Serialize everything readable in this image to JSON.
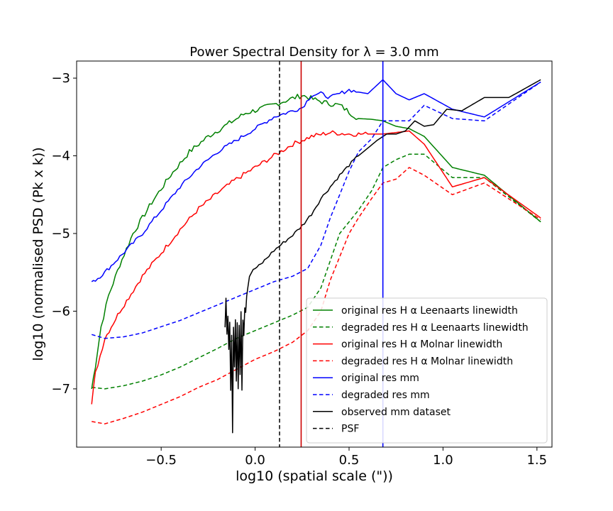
{
  "chart_data": {
    "type": "line",
    "title": "Power Spectral Density for λ = 3.0 mm",
    "xlabel": "log10 (spatial scale (\"))",
    "ylabel": "log10 (normalised PSD (Pk x k))",
    "xlim": [
      -0.95,
      1.58
    ],
    "ylim": [
      -7.75,
      -2.78
    ],
    "x_ticks": [
      -0.5,
      0.0,
      0.5,
      1.0,
      1.5
    ],
    "x_tick_labels": [
      "−0.5",
      "0.0",
      "0.5",
      "1.0",
      "1.5"
    ],
    "y_ticks": [
      -7,
      -6,
      -5,
      -4,
      -3
    ],
    "y_tick_labels": [
      "−7",
      "−6",
      "−5",
      "−4",
      "−3"
    ],
    "grid": false,
    "legend_position": "lower right",
    "series": [
      {
        "name": "original res H α Leenaarts linewidth",
        "color": "#008000",
        "dash": "solid",
        "x": [
          -0.87,
          -0.85,
          -0.82,
          -0.78,
          -0.72,
          -0.65,
          -0.55,
          -0.45,
          -0.35,
          -0.25,
          -0.15,
          -0.05,
          0.05,
          0.15,
          0.25,
          0.32,
          0.38,
          0.45,
          0.55,
          0.62,
          0.68,
          0.75,
          0.82,
          0.9,
          1.05,
          1.22,
          1.52
        ],
        "y": [
          -7.0,
          -6.7,
          -6.2,
          -5.8,
          -5.4,
          -5.0,
          -4.6,
          -4.25,
          -3.95,
          -3.75,
          -3.6,
          -3.45,
          -3.38,
          -3.3,
          -3.22,
          -3.28,
          -3.32,
          -3.35,
          -3.52,
          -3.53,
          -3.55,
          -3.62,
          -3.65,
          -3.75,
          -4.15,
          -4.25,
          -4.85
        ],
        "noise": 0.035
      },
      {
        "name": "degraded res H α Leenaarts linewidth",
        "color": "#008000",
        "dash": "dashed",
        "x": [
          -0.87,
          -0.8,
          -0.7,
          -0.6,
          -0.5,
          -0.4,
          -0.3,
          -0.2,
          -0.1,
          0.0,
          0.1,
          0.2,
          0.28,
          0.35,
          0.4,
          0.45,
          0.5,
          0.55,
          0.62,
          0.68,
          0.75,
          0.82,
          0.9,
          1.05,
          1.22,
          1.52
        ],
        "y": [
          -6.98,
          -7.0,
          -6.96,
          -6.9,
          -6.82,
          -6.72,
          -6.6,
          -6.48,
          -6.35,
          -6.25,
          -6.15,
          -6.05,
          -5.95,
          -5.7,
          -5.35,
          -5.0,
          -4.85,
          -4.7,
          -4.45,
          -4.15,
          -4.05,
          -3.98,
          -3.98,
          -4.28,
          -4.28,
          -4.85
        ],
        "noise": 0
      },
      {
        "name": "original res H α Molnar linewidth",
        "color": "#ff0000",
        "dash": "solid",
        "x": [
          -0.87,
          -0.85,
          -0.8,
          -0.72,
          -0.6,
          -0.5,
          -0.4,
          -0.3,
          -0.2,
          -0.1,
          0.0,
          0.1,
          0.2,
          0.3,
          0.4,
          0.5,
          0.6,
          0.68,
          0.75,
          0.82,
          0.9,
          1.05,
          1.22,
          1.52
        ],
        "y": [
          -7.2,
          -6.8,
          -6.35,
          -6.0,
          -5.55,
          -5.25,
          -4.95,
          -4.68,
          -4.48,
          -4.3,
          -4.15,
          -4.0,
          -3.85,
          -3.75,
          -3.7,
          -3.72,
          -3.72,
          -3.72,
          -3.7,
          -3.68,
          -3.85,
          -4.4,
          -4.28,
          -4.8
        ],
        "noise": 0.03
      },
      {
        "name": "degraded res H α Molnar linewidth",
        "color": "#ff0000",
        "dash": "dashed",
        "x": [
          -0.87,
          -0.8,
          -0.7,
          -0.6,
          -0.5,
          -0.4,
          -0.3,
          -0.2,
          -0.1,
          0.0,
          0.1,
          0.2,
          0.28,
          0.35,
          0.4,
          0.45,
          0.5,
          0.55,
          0.62,
          0.68,
          0.75,
          0.82,
          0.9,
          1.05,
          1.22,
          1.52
        ],
        "y": [
          -7.42,
          -7.45,
          -7.38,
          -7.3,
          -7.2,
          -7.1,
          -6.98,
          -6.88,
          -6.75,
          -6.62,
          -6.52,
          -6.4,
          -6.25,
          -6.0,
          -5.6,
          -5.3,
          -5.0,
          -4.8,
          -4.55,
          -4.35,
          -4.3,
          -4.15,
          -4.25,
          -4.5,
          -4.35,
          -4.82
        ],
        "noise": 0
      },
      {
        "name": "original res mm",
        "color": "#0000ff",
        "dash": "solid",
        "x": [
          -0.87,
          -0.85,
          -0.8,
          -0.72,
          -0.6,
          -0.5,
          -0.4,
          -0.3,
          -0.2,
          -0.1,
          0.0,
          0.1,
          0.2,
          0.25,
          0.3,
          0.35,
          0.4,
          0.45,
          0.5,
          0.55,
          0.6,
          0.68,
          0.75,
          0.82,
          0.9,
          1.05,
          1.22,
          1.52
        ],
        "y": [
          -5.6,
          -5.6,
          -5.5,
          -5.3,
          -5.0,
          -4.7,
          -4.4,
          -4.15,
          -3.95,
          -3.8,
          -3.65,
          -3.5,
          -3.42,
          -3.38,
          -3.22,
          -3.2,
          -3.25,
          -3.2,
          -3.15,
          -3.18,
          -3.2,
          -3.02,
          -3.2,
          -3.28,
          -3.2,
          -3.4,
          -3.5,
          -3.05
        ],
        "noise": 0.025
      },
      {
        "name": "degraded res mm",
        "color": "#0000ff",
        "dash": "dashed",
        "x": [
          -0.87,
          -0.8,
          -0.7,
          -0.6,
          -0.5,
          -0.4,
          -0.3,
          -0.2,
          -0.1,
          0.0,
          0.1,
          0.2,
          0.28,
          0.35,
          0.4,
          0.45,
          0.5,
          0.55,
          0.62,
          0.68,
          0.75,
          0.82,
          0.9,
          1.05,
          1.22,
          1.52
        ],
        "y": [
          -6.3,
          -6.35,
          -6.33,
          -6.28,
          -6.2,
          -6.12,
          -6.02,
          -5.92,
          -5.82,
          -5.72,
          -5.62,
          -5.55,
          -5.45,
          -5.15,
          -4.8,
          -4.5,
          -4.2,
          -3.95,
          -3.78,
          -3.55,
          -3.55,
          -3.55,
          -3.35,
          -3.52,
          -3.55,
          -3.05
        ],
        "noise": 0
      },
      {
        "name": "observed mm dataset",
        "color": "#000000",
        "dash": "solid",
        "x": [
          -0.16,
          -0.155,
          -0.15,
          -0.145,
          -0.14,
          -0.135,
          -0.13,
          -0.125,
          -0.12,
          -0.115,
          -0.11,
          -0.105,
          -0.1,
          -0.095,
          -0.09,
          -0.085,
          -0.08,
          -0.075,
          -0.07,
          -0.065,
          -0.06,
          -0.055,
          -0.05,
          -0.045,
          -0.04,
          -0.03,
          -0.02,
          0.0,
          0.03,
          0.06,
          0.1,
          0.15,
          0.2,
          0.25,
          0.3,
          0.35,
          0.4,
          0.45,
          0.5,
          0.55,
          0.6,
          0.65,
          0.7,
          0.75,
          0.8,
          0.85,
          0.9,
          0.95,
          1.02,
          1.1,
          1.22,
          1.35,
          1.52
        ],
        "y": [
          -6.2,
          -5.85,
          -6.3,
          -6.05,
          -6.5,
          -6.15,
          -7.0,
          -6.3,
          -7.55,
          -6.2,
          -6.7,
          -6.1,
          -6.9,
          -6.15,
          -7.0,
          -6.2,
          -6.8,
          -6.0,
          -7.0,
          -6.1,
          -6.3,
          -5.95,
          -6.0,
          -5.8,
          -5.7,
          -5.55,
          -5.5,
          -5.45,
          -5.4,
          -5.32,
          -5.22,
          -5.12,
          -5.02,
          -4.9,
          -4.75,
          -4.55,
          -4.4,
          -4.25,
          -4.12,
          -4.0,
          -3.9,
          -3.8,
          -3.72,
          -3.72,
          -3.68,
          -3.55,
          -3.62,
          -3.6,
          -3.4,
          -3.42,
          -3.25,
          -3.25,
          -3.02
        ],
        "noise": 0.02
      }
    ],
    "vertical_lines": [
      {
        "name": "PSF",
        "x": 0.13,
        "color": "#000000",
        "dash": "dashed"
      },
      {
        "name": "",
        "x": 0.245,
        "color": "#cc0000",
        "dash": "solid"
      },
      {
        "name": "",
        "x": 0.68,
        "color": "#0000ff",
        "dash": "solid"
      }
    ]
  }
}
